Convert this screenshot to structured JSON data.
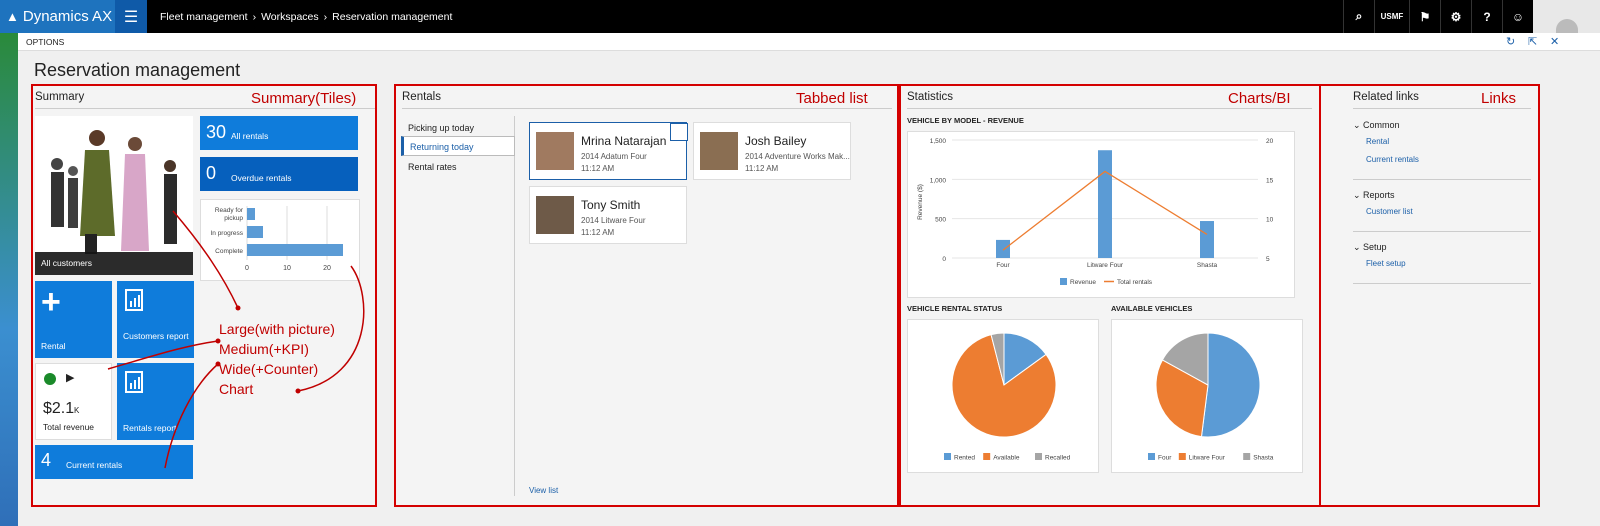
{
  "app": {
    "title": "Dynamics AX",
    "menu_icon": "hamburger-icon"
  },
  "breadcrumb": [
    "Fleet management",
    "Workspaces",
    "Reservation management"
  ],
  "topbar": {
    "company": "USMF"
  },
  "options_label": "OPTIONS",
  "page_title": "Reservation management",
  "summary": {
    "title": "Summary",
    "tiles": {
      "all_customers": "All customers",
      "all_rentals": {
        "count": "30",
        "label": "All rentals"
      },
      "overdue_rentals": {
        "count": "0",
        "label": "Overdue rentals"
      },
      "rental": "Rental",
      "customers_report": "Customers report",
      "total_revenue": {
        "value": "$2.1",
        "unit": "K",
        "label": "Total revenue"
      },
      "rentals_report": "Rentals report",
      "current_rentals": {
        "count": "4",
        "label": "Current rentals"
      }
    },
    "mini_chart": {
      "categories": [
        "Ready for pickup",
        "In progress",
        "Complete"
      ],
      "values": [
        2,
        4,
        24
      ],
      "ticks": [
        "0",
        "10",
        "20"
      ]
    }
  },
  "rentals": {
    "title": "Rentals",
    "tabs": [
      "Picking up today",
      "Returning today",
      "Rental rates"
    ],
    "selected_tab": 1,
    "cards": [
      {
        "name": "Mrina Natarajan",
        "car": "2014 Adatum Four",
        "time": "11:12 AM"
      },
      {
        "name": "Josh Bailey",
        "car": "2014 Adventure Works Mak...",
        "time": "11:12 AM"
      },
      {
        "name": "Tony Smith",
        "car": "2014 Litware Four",
        "time": "11:12 AM"
      }
    ],
    "view_list": "View list"
  },
  "statistics": {
    "title": "Statistics"
  },
  "chart_data": [
    {
      "type": "bar",
      "title": "VEHICLE BY MODEL - REVENUE",
      "categories": [
        "Four",
        "Litware Four",
        "Shasta"
      ],
      "series": [
        {
          "name": "Revenue",
          "values": [
            230,
            1370,
            470
          ]
        },
        {
          "name": "Total rentals",
          "values": [
            6,
            16,
            8
          ]
        }
      ],
      "ylabel": "Revenue ($)",
      "ylim": [
        0,
        1500
      ],
      "y2lim": [
        5,
        20
      ],
      "yticks": [
        "0",
        "500",
        "1,000",
        "1,500"
      ],
      "y2ticks": [
        "5",
        "10",
        "15",
        "20"
      ],
      "legend": "bottom"
    },
    {
      "type": "pie",
      "title": "VEHICLE RENTAL STATUS",
      "categories": [
        "Rented",
        "Available",
        "Recalled"
      ],
      "values": [
        15,
        81,
        4
      ],
      "legend": "bottom"
    },
    {
      "type": "pie",
      "title": "AVAILABLE VEHICLES",
      "categories": [
        "Four",
        "Litware Four",
        "Shasta"
      ],
      "values": [
        52,
        31,
        17
      ],
      "legend": "bottom"
    }
  ],
  "links": {
    "title": "Related links",
    "groups": [
      {
        "name": "Common",
        "items": [
          "Rental",
          "Current rentals"
        ]
      },
      {
        "name": "Reports",
        "items": [
          "Customer list"
        ]
      },
      {
        "name": "Setup",
        "items": [
          "Fleet setup"
        ]
      }
    ]
  },
  "annotations": {
    "summary": "Summary(Tiles)",
    "tabbed": "Tabbed list",
    "charts": "Charts/BI",
    "links": "Links",
    "legend": [
      "Large(with picture)",
      "Medium(+KPI)",
      "Wide(+Counter)",
      "Chart"
    ]
  },
  "colors": {
    "accent": "#0f7cdb",
    "orange": "#ed7d31",
    "gray": "#a5a5a5",
    "annot": "#d40000"
  }
}
